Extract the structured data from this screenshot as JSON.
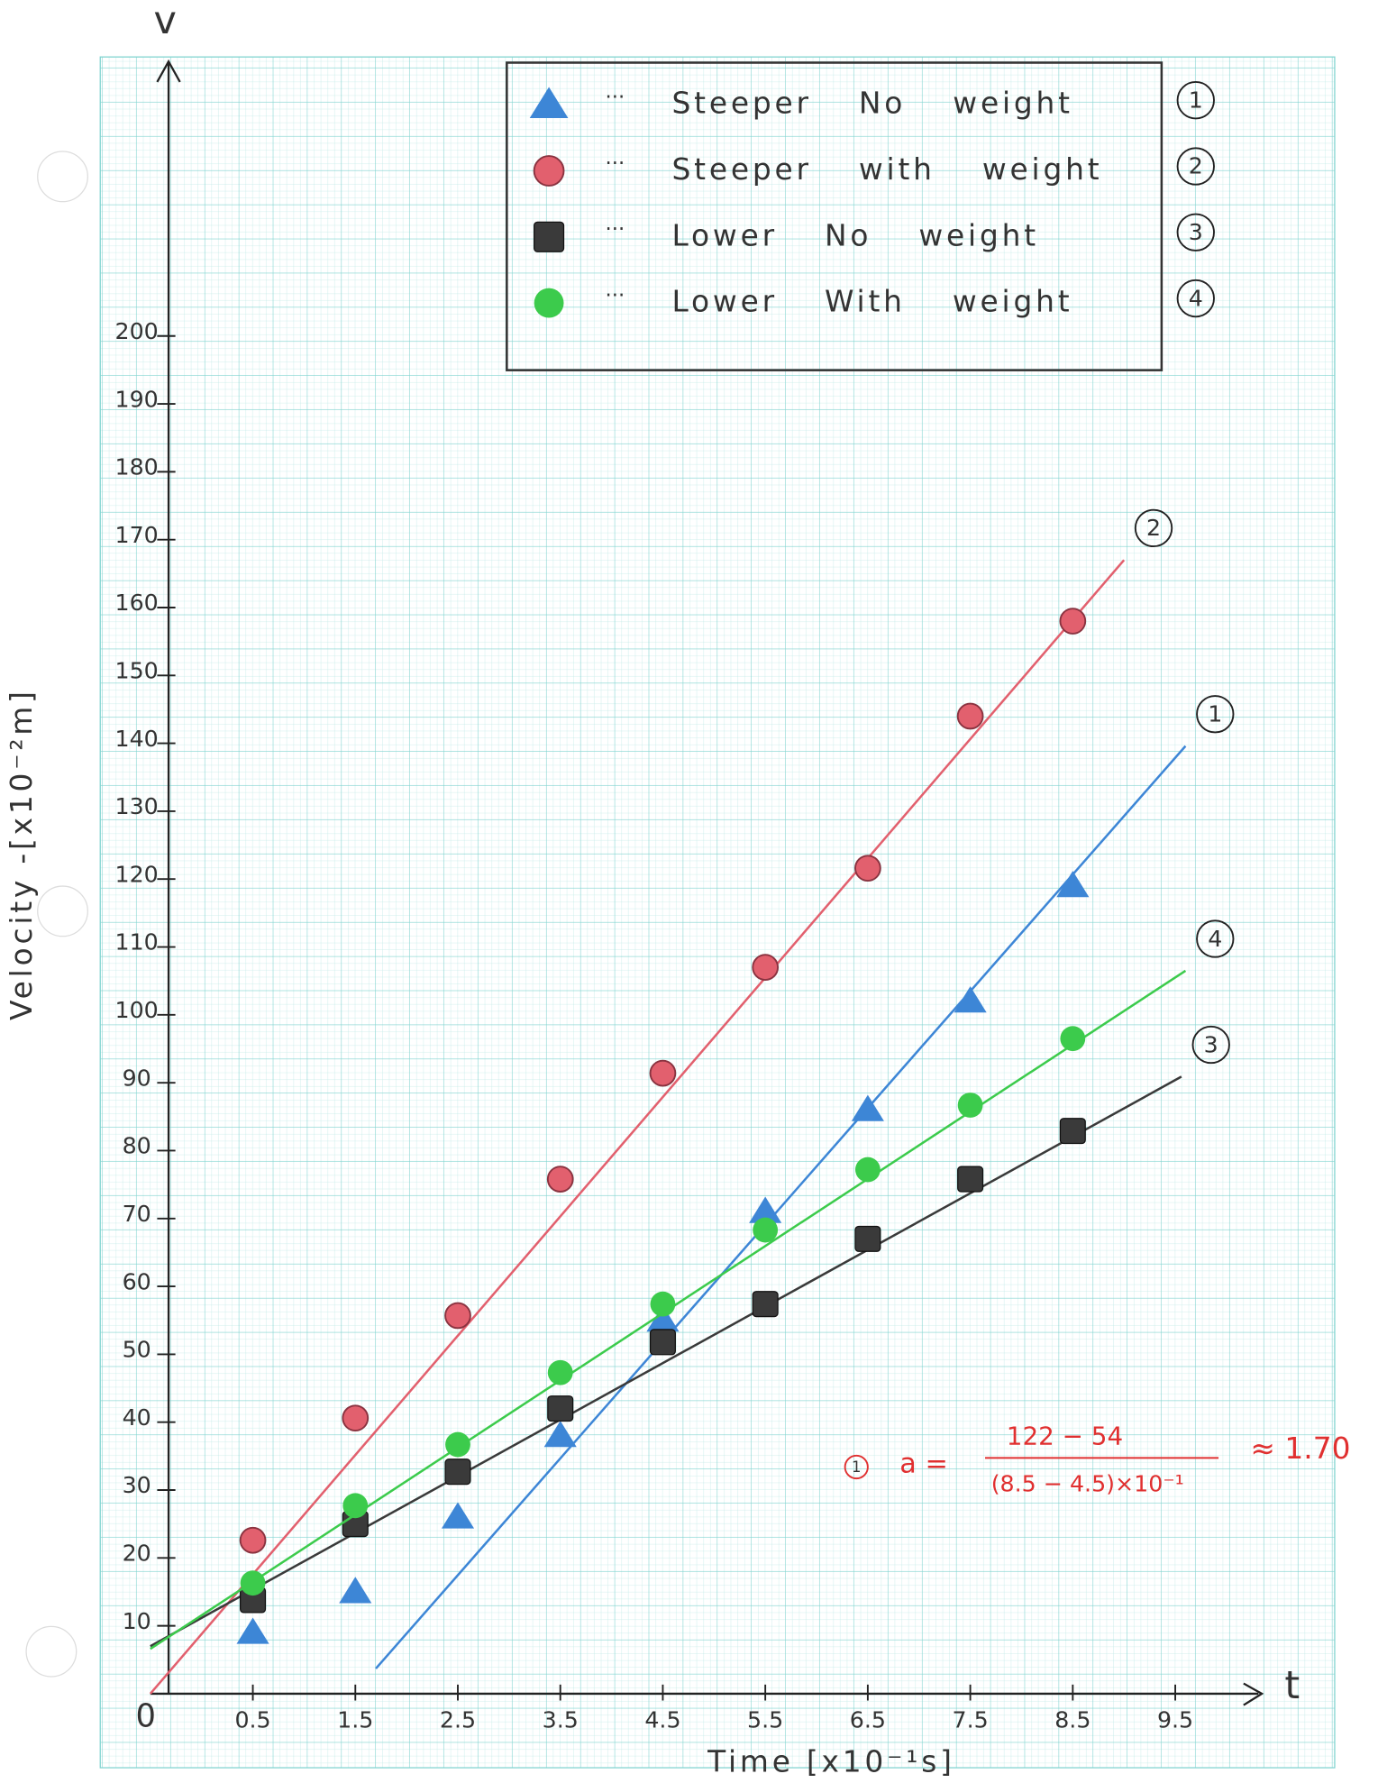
{
  "chart_data": {
    "type": "scatter",
    "x_axis_symbol": "t",
    "y_axis_symbol": "v",
    "origin_label": "0",
    "x_label": "Time [x10⁻¹s]",
    "y_label": "Velocity -[x10⁻²m]",
    "xticks": [
      0.5,
      1.5,
      2.5,
      3.5,
      4.5,
      5.5,
      6.5,
      7.5,
      8.5,
      9.5
    ],
    "yticks": [
      10,
      20,
      30,
      40,
      50,
      60,
      70,
      80,
      90,
      100,
      110,
      120,
      130,
      140,
      150,
      160,
      170,
      180,
      190,
      200
    ],
    "xlim": [
      -0.5,
      10.5
    ],
    "ylim": [
      0,
      240
    ],
    "legend_separator": "···",
    "x": [
      0.5,
      1.5,
      2.5,
      3.5,
      4.5,
      5.5,
      6.5,
      7.5,
      8.5
    ],
    "series": [
      {
        "name": "Steeper No weight",
        "label": "1",
        "marker": "triangle",
        "color": "#3d86d6",
        "values": [
          9,
          15,
          26,
          38,
          55,
          71,
          86,
          102,
          119
        ],
        "fit": {
          "x": [
            1.7,
            9.6
          ],
          "y": [
            3.7,
            139.6
          ]
        }
      },
      {
        "name": "Steeper with weight",
        "label": "2",
        "marker": "circle",
        "color": "#e2606e",
        "values": [
          22.6,
          40.6,
          55.7,
          75.8,
          91.4,
          107,
          121.6,
          144,
          158
        ],
        "fit": {
          "x": [
            -0.5,
            9.0
          ],
          "y": [
            0,
            167
          ]
        }
      },
      {
        "name": "Lower No weight",
        "label": "3",
        "marker": "square",
        "color": "#3a3a3a",
        "values": [
          13.8,
          25,
          32.7,
          42,
          51.8,
          57.4,
          67,
          75.8,
          82.9
        ],
        "fit": {
          "x": [
            -0.5,
            9.56
          ],
          "y": [
            7,
            90.9
          ]
        }
      },
      {
        "name": "Lower With weight",
        "label": "4",
        "marker": "circle",
        "color": "#3ccb4c",
        "values": [
          16.3,
          27.7,
          36.7,
          47.3,
          57.4,
          68.3,
          77.2,
          86.7,
          96.5
        ],
        "fit": {
          "x": [
            -0.5,
            9.6
          ],
          "y": [
            6.6,
            106.5
          ]
        }
      }
    ],
    "annotation": {
      "label": "1",
      "lhs": "a =",
      "numerator": "122 − 54",
      "denominator": "(8.5 − 4.5)×10⁻¹",
      "result": "≈ 1.70",
      "color": "#e03030"
    }
  }
}
